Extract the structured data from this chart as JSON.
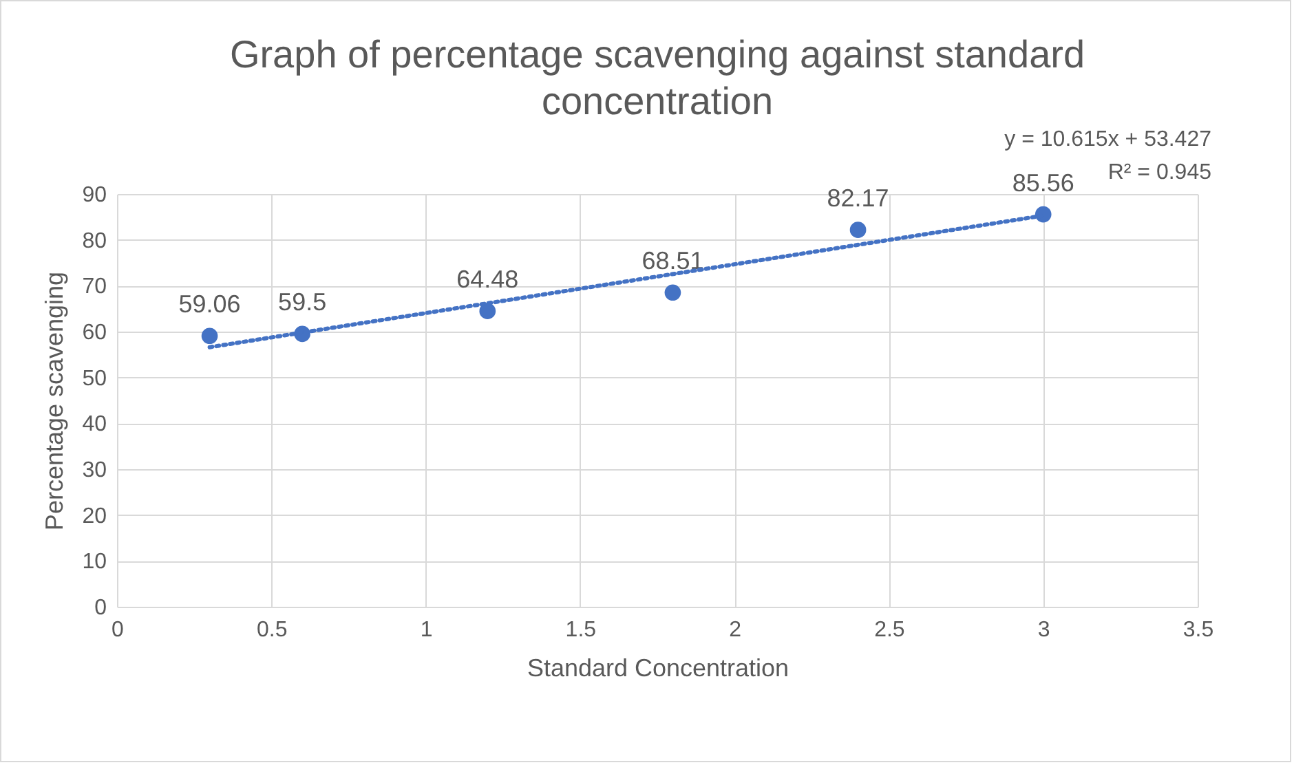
{
  "chart_data": {
    "type": "scatter",
    "title": "Graph of percentage scavenging against standard concentration",
    "xlabel": "Standard Concentration",
    "ylabel": "Percentage scavenging",
    "series": [
      {
        "color": "#4472c4",
        "marker": "circle",
        "x": [
          0.3,
          0.6,
          1.2,
          1.8,
          2.4,
          3.0
        ],
        "values": [
          59.06,
          59.5,
          64.48,
          68.51,
          82.17,
          85.56
        ],
        "value_labels": [
          "59.06",
          "59.5",
          "64.48",
          "68.51",
          "82.17",
          "85.56"
        ]
      },
      {
        "type": "line",
        "color": "#4472c4",
        "marker": "none",
        "line_style": "dotted",
        "x": [
          0.3,
          3.0
        ],
        "values": [
          56.6,
          85.3
        ]
      }
    ],
    "annotations": [
      "y = 10.615x + 53.427",
      "R² = 0.945"
    ],
    "xlim": [
      0,
      3.5
    ],
    "xticks": [
      0,
      0.5,
      1,
      1.5,
      2,
      2.5,
      3,
      3.5
    ],
    "ylim": [
      0,
      90
    ],
    "yticks": [
      0,
      10,
      20,
      30,
      40,
      50,
      60,
      70,
      80,
      90
    ],
    "grid": true
  }
}
